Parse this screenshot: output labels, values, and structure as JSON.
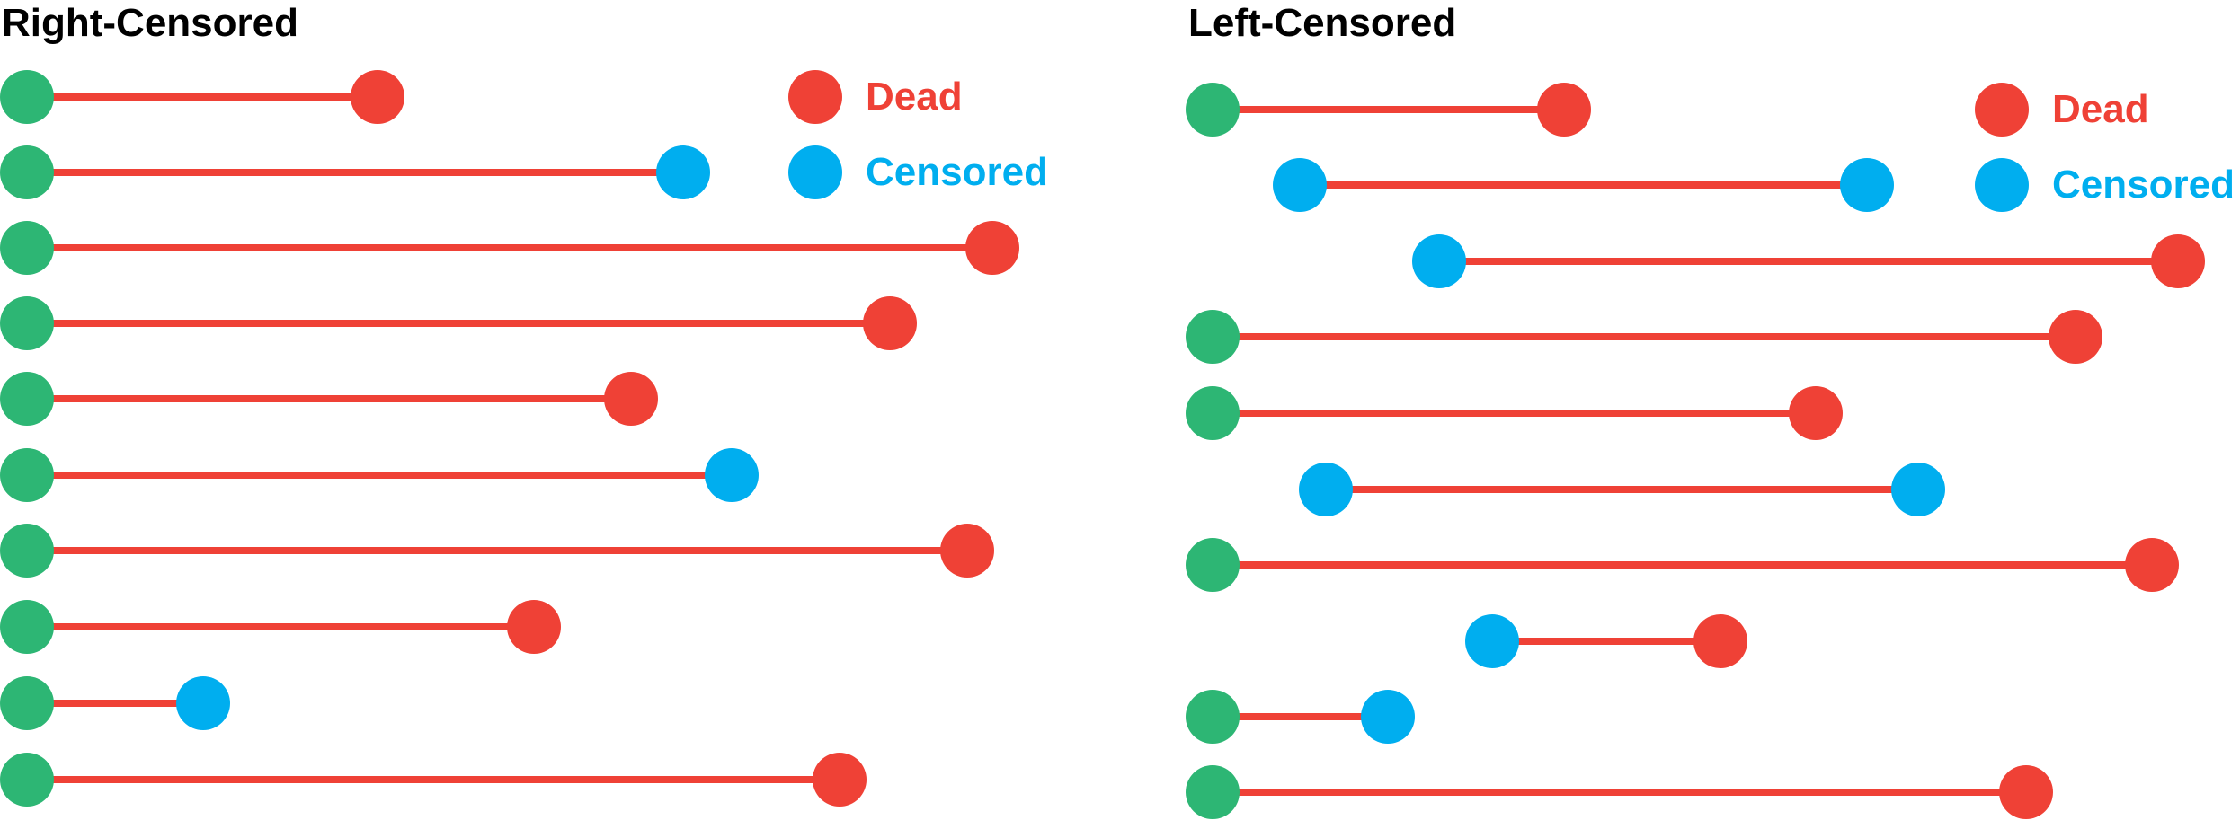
{
  "colors": {
    "start": "#2db674",
    "dead": "#ef4136",
    "censored": "#00aeef",
    "line": "#ef4136",
    "title": "#000000"
  },
  "legend": {
    "dead_label": "Dead",
    "censored_label": "Censored"
  },
  "panels": [
    {
      "id": "right-censored",
      "title": "Right-Censored",
      "rows": [
        {
          "start": "start",
          "end": "dead"
        },
        {
          "start": "start",
          "end": "censored"
        },
        {
          "start": "start",
          "end": "dead"
        },
        {
          "start": "start",
          "end": "dead"
        },
        {
          "start": "start",
          "end": "dead"
        },
        {
          "start": "start",
          "end": "censored"
        },
        {
          "start": "start",
          "end": "dead"
        },
        {
          "start": "start",
          "end": "dead"
        },
        {
          "start": "start",
          "end": "censored"
        },
        {
          "start": "start",
          "end": "dead"
        }
      ]
    },
    {
      "id": "left-censored",
      "title": "Left-Censored",
      "rows": [
        {
          "start": "start",
          "end": "dead"
        },
        {
          "start": "censored",
          "end": "censored"
        },
        {
          "start": "censored",
          "end": "dead"
        },
        {
          "start": "start",
          "end": "dead"
        },
        {
          "start": "start",
          "end": "dead"
        },
        {
          "start": "censored",
          "end": "censored"
        },
        {
          "start": "start",
          "end": "dead"
        },
        {
          "start": "censored",
          "end": "dead"
        },
        {
          "start": "start",
          "end": "censored"
        },
        {
          "start": "start",
          "end": "dead"
        }
      ]
    }
  ]
}
